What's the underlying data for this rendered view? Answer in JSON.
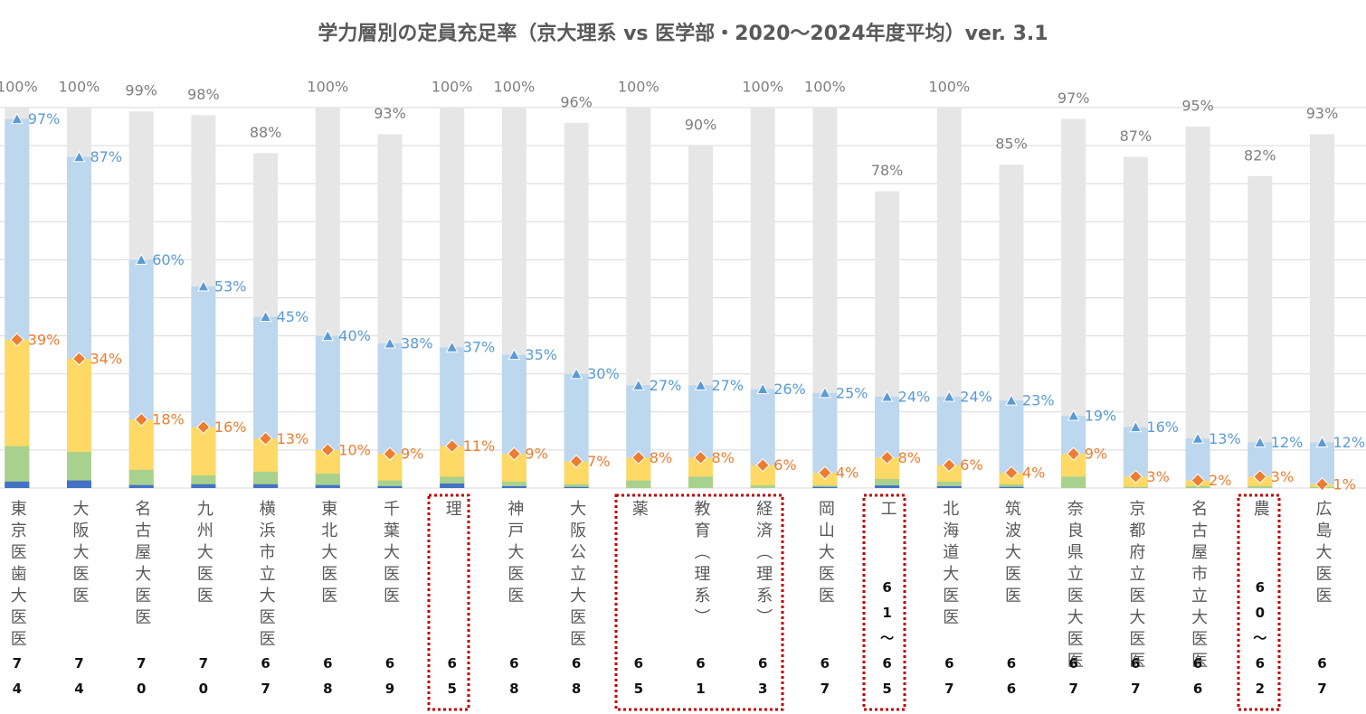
{
  "chart_data": {
    "type": "bar",
    "overlap": true,
    "title": "学力層別の定員充足率（京大理系 vs 医学部・2020〜2024年度平均）ver. 3.1",
    "categories": [
      "東京医歯大医医",
      "大阪大医医",
      "名古屋大医医",
      "九州大医医",
      "横浜市立大医医",
      "東北大医医",
      "千葉大医医",
      "理",
      "神戸大医医",
      "大阪公立大医医",
      "薬",
      "教育（理系）",
      "経済（理系）",
      "岡山大医医",
      "工",
      "北海道大医医",
      "筑波大医医",
      "奈良県立医大医医",
      "京都府立医大医医",
      "名古屋市立大医医",
      "農",
      "広島大医医"
    ],
    "scores": [
      "74",
      "74",
      "70",
      "70",
      "67",
      "68",
      "69",
      "65",
      "68",
      "68",
      "65",
      "61",
      "63",
      "67",
      "61〜65",
      "67",
      "66",
      "67",
      "67",
      "66",
      "60〜62",
      "67"
    ],
    "ylim": [
      0,
      100
    ],
    "yticks": [
      0,
      10,
      20,
      30,
      40,
      50,
      60,
      70,
      80,
      90,
      100
    ],
    "grid": true,
    "series": [
      {
        "color": "#e7e6e6",
        "label_color": "#7f7f7f",
        "label_position": "above",
        "values": [
          100,
          100,
          99,
          98,
          88,
          100,
          93,
          100,
          100,
          96,
          100,
          90,
          100,
          100,
          78,
          100,
          85,
          97,
          87,
          95,
          82,
          93
        ],
        "value_labels": [
          "100%",
          "100%",
          "99%",
          "98%",
          "88%",
          "100%",
          "93%",
          "100%",
          "100%",
          "96%",
          "100%",
          "90%",
          "100%",
          "100%",
          "78%",
          "100%",
          "85%",
          "97%",
          "87%",
          "95%",
          "82%",
          "93%"
        ]
      },
      {
        "color": "#bdd7ee",
        "marker": "triangle",
        "marker_color": "#5b9bd5",
        "label_color": "#5b9bd5",
        "label_position": "right",
        "values": [
          97,
          87,
          60,
          53,
          45,
          40,
          38,
          37,
          35,
          30,
          27,
          27,
          26,
          25,
          24,
          24,
          23,
          19,
          16,
          13,
          12,
          12
        ],
        "value_labels": [
          "97%",
          "87%",
          "60%",
          "53%",
          "45%",
          "40%",
          "38%",
          "37%",
          "35%",
          "30%",
          "27%",
          "27%",
          "26%",
          "25%",
          "24%",
          "24%",
          "23%",
          "19%",
          "16%",
          "13%",
          "12%",
          "12%"
        ]
      },
      {
        "color": "#ffd966",
        "marker": "diamond",
        "marker_color": "#ed7d31",
        "label_color": "#ed7d31",
        "label_position": "right",
        "values": [
          39,
          34,
          18,
          16,
          13,
          10,
          9,
          11,
          9,
          7,
          8,
          8,
          6,
          4,
          8,
          6,
          4,
          9,
          3,
          2,
          3,
          1
        ],
        "value_labels": [
          "39%",
          "34%",
          "18%",
          "16%",
          "13%",
          "10%",
          "9%",
          "11%",
          "9%",
          "7%",
          "8%",
          "8%",
          "6%",
          "4%",
          "8%",
          "6%",
          "4%",
          "9%",
          "3%",
          "2%",
          "3%",
          "1%"
        ]
      },
      {
        "color": "#a9d18e",
        "values": [
          11,
          9.5,
          4.8,
          3.3,
          4.3,
          3.8,
          2,
          3,
          1.7,
          1,
          2,
          3,
          0.7,
          0.7,
          2.4,
          1.7,
          1,
          3,
          0.3,
          0.5,
          0.5,
          0.3
        ]
      },
      {
        "color": "#4472c4",
        "values": [
          1.7,
          2,
          0.8,
          1,
          1,
          0.8,
          0.5,
          1.2,
          0.5,
          0.3,
          0,
          0,
          0,
          0.3,
          0.7,
          0.5,
          0.3,
          0,
          0,
          0,
          0,
          0
        ]
      }
    ]
  }
}
